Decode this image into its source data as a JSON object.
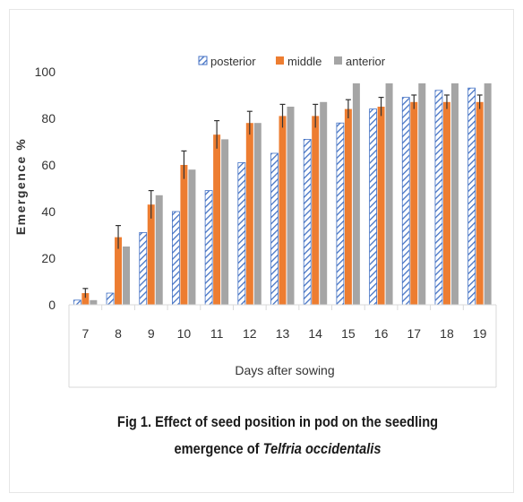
{
  "chart_data": {
    "type": "bar",
    "xlabel": "Days after sowing",
    "ylabel": "Emergence %",
    "ylim": [
      0,
      100
    ],
    "yticks": [
      0,
      20,
      40,
      60,
      80,
      100
    ],
    "categories": [
      "7",
      "8",
      "9",
      "10",
      "11",
      "12",
      "13",
      "14",
      "15",
      "16",
      "17",
      "18",
      "19"
    ],
    "series": [
      {
        "name": "posterior",
        "color": "#4472c4",
        "pattern": "diagonal-hatch",
        "values": [
          2,
          5,
          31,
          40,
          49,
          61,
          65,
          71,
          78,
          84,
          89,
          92,
          93
        ]
      },
      {
        "name": "middle",
        "color": "#ed7d31",
        "pattern": "solid",
        "values": [
          5,
          29,
          43,
          60,
          73,
          78,
          81,
          81,
          84,
          85,
          87,
          87,
          87
        ],
        "error": [
          2,
          5,
          6,
          6,
          6,
          5,
          5,
          5,
          4,
          4,
          3,
          3,
          3
        ]
      },
      {
        "name": "anterior",
        "color": "#a5a5a5",
        "pattern": "solid",
        "values": [
          2,
          25,
          47,
          58,
          71,
          78,
          85,
          87,
          95,
          95,
          95,
          95,
          95
        ]
      }
    ],
    "legend_position": "top",
    "gridlines": false
  },
  "caption": {
    "line1": "Fig 1. Effect of seed position in pod on the seedling",
    "line2_prefix": "emergence of ",
    "line2_species": "Telfria occidentalis"
  }
}
